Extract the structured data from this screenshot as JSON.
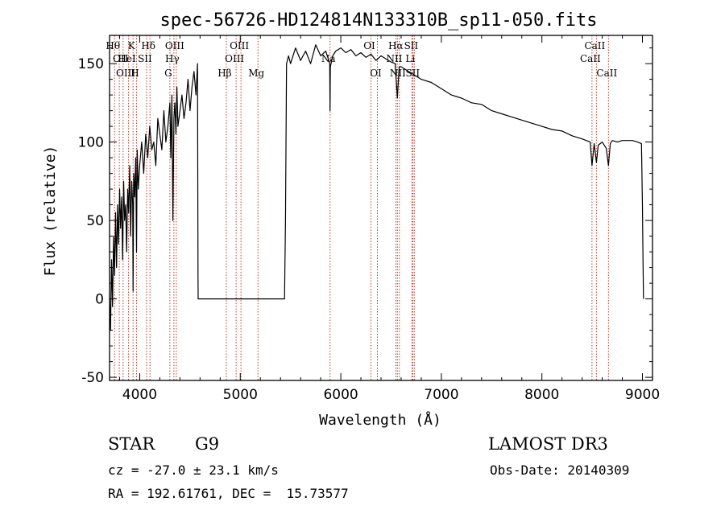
{
  "chart_data": {
    "type": "line",
    "title": "spec-56726-HD124814N133310B_sp11-050.fits",
    "xlabel": "Wavelength (Å)",
    "ylabel": "Flux (relative)",
    "xlim": [
      3700,
      9100
    ],
    "ylim": [
      -52,
      168
    ],
    "xticks": [
      4000,
      5000,
      6000,
      7000,
      8000,
      9000
    ],
    "yticks": [
      -50,
      0,
      50,
      100,
      150
    ],
    "grid": false,
    "series": [
      {
        "name": "flux",
        "x": [
          3700,
          3710,
          3720,
          3730,
          3740,
          3750,
          3760,
          3770,
          3780,
          3790,
          3800,
          3810,
          3820,
          3830,
          3840,
          3850,
          3860,
          3870,
          3880,
          3890,
          3900,
          3910,
          3920,
          3930,
          3934,
          3940,
          3950,
          3960,
          3968,
          3975,
          3985,
          4000,
          4020,
          4040,
          4060,
          4080,
          4100,
          4120,
          4140,
          4160,
          4180,
          4200,
          4220,
          4240,
          4260,
          4280,
          4300,
          4310,
          4320,
          4330,
          4340,
          4350,
          4360,
          4370,
          4380,
          4400,
          4420,
          4440,
          4460,
          4480,
          4500,
          4520,
          4540,
          4560,
          4575,
          4580,
          4581,
          4600,
          4800,
          5000,
          5200,
          5400,
          5430,
          5440,
          5450,
          5460,
          5480,
          5500,
          5550,
          5600,
          5650,
          5700,
          5750,
          5800,
          5850,
          5890,
          5893,
          5896,
          5920,
          5950,
          6000,
          6050,
          6100,
          6150,
          6200,
          6250,
          6300,
          6350,
          6400,
          6450,
          6500,
          6540,
          6563,
          6580,
          6600,
          6650,
          6700,
          6750,
          6800,
          6900,
          7000,
          7100,
          7200,
          7300,
          7400,
          7500,
          7600,
          7700,
          7800,
          7900,
          8000,
          8100,
          8200,
          8300,
          8400,
          8480,
          8498,
          8520,
          8542,
          8560,
          8600,
          8640,
          8662,
          8680,
          8700,
          8750,
          8800,
          8850,
          8900,
          8950,
          8990,
          9000,
          9005,
          9010
        ],
        "values": [
          0,
          -20,
          25,
          -5,
          40,
          15,
          55,
          20,
          60,
          35,
          70,
          45,
          65,
          25,
          75,
          50,
          60,
          30,
          70,
          55,
          85,
          40,
          75,
          60,
          5,
          80,
          65,
          90,
          30,
          95,
          70,
          85,
          100,
          80,
          105,
          90,
          110,
          95,
          100,
          85,
          115,
          105,
          95,
          120,
          100,
          110,
          125,
          90,
          130,
          50,
          115,
          125,
          105,
          135,
          110,
          120,
          130,
          115,
          125,
          140,
          120,
          135,
          145,
          130,
          150,
          15,
          0,
          0,
          0,
          0,
          0,
          0,
          0,
          0,
          50,
          150,
          155,
          150,
          160,
          152,
          158,
          150,
          162,
          155,
          158,
          150,
          120,
          148,
          155,
          158,
          160,
          157,
          159,
          155,
          157,
          154,
          156,
          152,
          155,
          153,
          151,
          150,
          128,
          148,
          148,
          146,
          144,
          142,
          140,
          138,
          134,
          130,
          128,
          125,
          124,
          120,
          118,
          116,
          114,
          112,
          110,
          108,
          107,
          104,
          102,
          100,
          85,
          99,
          87,
          98,
          100,
          96,
          85,
          99,
          101,
          100,
          101,
          101,
          101,
          100,
          99,
          60,
          30,
          0
        ]
      }
    ],
    "spectral_lines": [
      {
        "wl": 3750,
        "label": "Hθ",
        "row": 1
      },
      {
        "wl": 3797,
        "label": "",
        "row": 1
      },
      {
        "wl": 3835,
        "label": "",
        "row": 1
      },
      {
        "wl": 3889,
        "label": "HeI",
        "row": 2
      },
      {
        "wl": 3934,
        "label": "K",
        "row": 1
      },
      {
        "wl": 3968,
        "label": "H",
        "row": 3
      },
      {
        "wl": 4068,
        "label": "SII",
        "row": 2
      },
      {
        "wl": 4102,
        "label": "Hδ",
        "row": 1
      },
      {
        "wl": 4300,
        "label": "G",
        "row": 3
      },
      {
        "wl": 4340,
        "label": "Hγ",
        "row": 2
      },
      {
        "wl": 4364,
        "label": "OIII",
        "row": 1
      },
      {
        "wl": 4861,
        "label": "Hβ",
        "row": 3
      },
      {
        "wl": 4959,
        "label": "OIII",
        "row": 2
      },
      {
        "wl": 5007,
        "label": "OIII",
        "row": 1
      },
      {
        "wl": 5176,
        "label": "Mg",
        "row": 3
      },
      {
        "wl": 5893,
        "label": "Na",
        "row": 2
      },
      {
        "wl": 6300,
        "label": "OI",
        "row": 1
      },
      {
        "wl": 6364,
        "label": "OI",
        "row": 3
      },
      {
        "wl": 6548,
        "label": "NII",
        "row": 2
      },
      {
        "wl": 6563,
        "label": "Hα",
        "row": 1
      },
      {
        "wl": 6583,
        "label": "NII",
        "row": 3
      },
      {
        "wl": 6707,
        "label": "Li",
        "row": 2
      },
      {
        "wl": 6716,
        "label": "SII",
        "row": 1
      },
      {
        "wl": 6731,
        "label": "SII",
        "row": 3
      },
      {
        "wl": 8498,
        "label": "CaII",
        "row": 2
      },
      {
        "wl": 8542,
        "label": "CaII",
        "row": 1
      },
      {
        "wl": 8662,
        "label": "CaII",
        "row": 3
      }
    ],
    "left_edge_labels": [
      "OII",
      "OIII"
    ]
  },
  "info": {
    "object_class": "STAR",
    "subclass": "G9",
    "survey": "LAMOST DR3",
    "cz": "cz = -27.0 ± 23.1 km/s",
    "obs_date": "Obs-Date: 20140309",
    "coords": "RA = 192.61761, DEC =  15.73577"
  }
}
